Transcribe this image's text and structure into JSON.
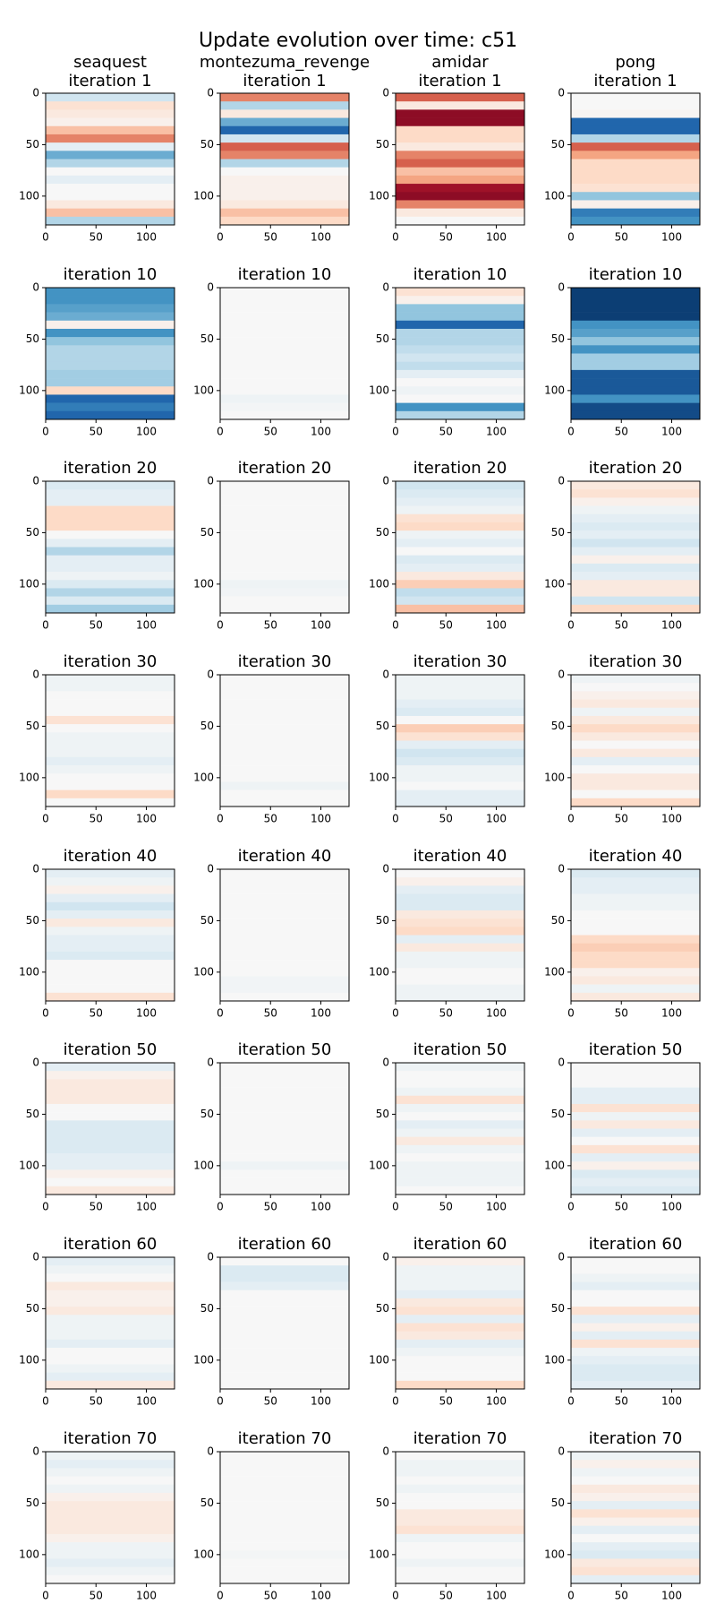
{
  "title": "Update evolution over time: c51",
  "axes": {
    "xlim": [
      0,
      128
    ],
    "ylim": [
      0,
      128
    ],
    "y_inverted": true,
    "xticks": [
      0,
      50,
      100
    ],
    "yticks": [
      0,
      50,
      100
    ],
    "colormap": "RdBu_r",
    "vlim": [
      -1,
      1
    ]
  },
  "chart_data": [
    {
      "type": "heatmap",
      "game": "seaquest",
      "title": "iteration 1",
      "values": [
        -0.2,
        0.15,
        0.1,
        0.05,
        0.3,
        0.5,
        -0.1,
        -0.5,
        -0.3,
        0,
        -0.1,
        0,
        0,
        0.1,
        0.3,
        -0.3
      ]
    },
    {
      "type": "heatmap",
      "game": "montezuma_revenge",
      "title": "iteration 1",
      "values": [
        0.5,
        -0.3,
        0.1,
        -0.5,
        -0.8,
        -0.2,
        0.6,
        0.5,
        -0.3,
        0,
        0.05,
        0.05,
        0.05,
        0.1,
        0.3,
        0.2
      ]
    },
    {
      "type": "heatmap",
      "game": "amidar",
      "title": "iteration 1",
      "values": [
        0.6,
        0.1,
        0.9,
        0.9,
        0.2,
        0.2,
        0.1,
        0.5,
        0.6,
        0.3,
        0.4,
        0.85,
        0.9,
        0.5,
        0.1,
        0
      ]
    },
    {
      "type": "heatmap",
      "game": "pong",
      "title": "iteration 1",
      "values": [
        0,
        0,
        0.02,
        -0.8,
        -0.8,
        -0.3,
        0.6,
        0.4,
        0.2,
        0.2,
        0.2,
        0.15,
        -0.4,
        0.05,
        -0.7,
        -0.6
      ]
    },
    {
      "type": "heatmap",
      "title": "iteration 10",
      "values": [
        -0.6,
        -0.6,
        -0.55,
        -0.5,
        0.05,
        -0.6,
        -0.4,
        -0.3,
        -0.3,
        -0.3,
        -0.35,
        -0.35,
        0.2,
        -0.8,
        -0.7,
        -0.8
      ]
    },
    {
      "type": "heatmap",
      "title": "iteration 10",
      "values": [
        0,
        0,
        0,
        0,
        0,
        0,
        0,
        0,
        0,
        0,
        0,
        0,
        0,
        -0.05,
        -0.02,
        0
      ]
    },
    {
      "type": "heatmap",
      "title": "iteration 10",
      "values": [
        0.15,
        0.05,
        -0.4,
        -0.4,
        -0.8,
        -0.3,
        -0.3,
        -0.25,
        -0.2,
        -0.25,
        -0.1,
        0,
        -0.05,
        0,
        -0.6,
        -0.3
      ]
    },
    {
      "type": "heatmap",
      "title": "iteration 10",
      "values": [
        -0.95,
        -0.95,
        -0.95,
        -0.95,
        -0.6,
        -0.55,
        -0.4,
        -0.6,
        -0.35,
        -0.35,
        -0.85,
        -0.85,
        -0.85,
        -0.6,
        -0.9,
        -0.9
      ]
    },
    {
      "type": "heatmap",
      "title": "iteration 20",
      "values": [
        -0.15,
        -0.1,
        -0.1,
        0.2,
        0.2,
        0.2,
        0,
        -0.1,
        -0.3,
        -0.1,
        -0.1,
        -0.05,
        -0.15,
        -0.3,
        -0.15,
        -0.35
      ]
    },
    {
      "type": "heatmap",
      "title": "iteration 20",
      "values": [
        0,
        0,
        0,
        0,
        0,
        0,
        0,
        0,
        0,
        0,
        0,
        0,
        -0.05,
        -0.03,
        0,
        0
      ]
    },
    {
      "type": "heatmap",
      "title": "iteration 20",
      "values": [
        -0.2,
        -0.15,
        -0.1,
        -0.05,
        0.15,
        0.2,
        -0.05,
        -0.1,
        0,
        -0.15,
        -0.1,
        0.1,
        0.25,
        -0.25,
        -0.2,
        0.3
      ]
    },
    {
      "type": "heatmap",
      "title": "iteration 20",
      "values": [
        0.1,
        0.15,
        0.05,
        -0.05,
        -0.1,
        -0.15,
        -0.1,
        -0.2,
        -0.1,
        0.05,
        -0.15,
        -0.1,
        0.1,
        0.1,
        -0.2,
        0.2
      ]
    },
    {
      "type": "heatmap",
      "title": "iteration 30",
      "values": [
        -0.05,
        -0.05,
        0,
        0,
        0,
        0.15,
        0,
        -0.05,
        -0.05,
        -0.05,
        -0.1,
        -0.05,
        0,
        0,
        0.2,
        0
      ]
    },
    {
      "type": "heatmap",
      "title": "iteration 30",
      "values": [
        0,
        0,
        0,
        0,
        0,
        0,
        0,
        0,
        0,
        0,
        0,
        0,
        0,
        -0.05,
        0,
        0
      ]
    },
    {
      "type": "heatmap",
      "title": "iteration 30",
      "values": [
        -0.05,
        -0.05,
        -0.05,
        -0.1,
        -0.15,
        0,
        0.25,
        0.15,
        -0.1,
        -0.2,
        -0.15,
        -0.05,
        -0.05,
        0,
        -0.1,
        -0.1
      ]
    },
    {
      "type": "heatmap",
      "title": "iteration 30",
      "values": [
        -0.05,
        0,
        0.05,
        0.1,
        -0.05,
        0.1,
        0.2,
        0.1,
        0,
        0.1,
        -0.1,
        0,
        0.1,
        0.1,
        0,
        0.2
      ]
    },
    {
      "type": "heatmap",
      "title": "iteration 40",
      "values": [
        -0.1,
        -0.05,
        0.05,
        -0.1,
        -0.2,
        -0.1,
        0.1,
        -0.05,
        -0.1,
        -0.1,
        -0.15,
        0,
        0,
        0,
        0,
        0.15
      ]
    },
    {
      "type": "heatmap",
      "title": "iteration 40",
      "values": [
        0,
        0,
        0,
        0,
        0,
        0,
        0,
        0,
        0,
        0,
        0,
        0,
        0,
        -0.03,
        -0.03,
        0
      ]
    },
    {
      "type": "heatmap",
      "title": "iteration 40",
      "values": [
        0,
        0.05,
        -0.1,
        -0.15,
        -0.15,
        0.1,
        0.15,
        0.2,
        -0.1,
        0.1,
        -0.05,
        -0.05,
        0,
        0,
        -0.05,
        -0.05
      ]
    },
    {
      "type": "heatmap",
      "title": "iteration 40",
      "values": [
        -0.15,
        -0.1,
        -0.1,
        -0.05,
        -0.05,
        0,
        0,
        0,
        0.2,
        0.25,
        0.2,
        0.2,
        0.05,
        0.1,
        -0.05,
        0.1
      ]
    },
    {
      "type": "heatmap",
      "title": "iteration 50",
      "values": [
        -0.1,
        0.05,
        0.1,
        0.1,
        0.1,
        0,
        0,
        -0.15,
        -0.15,
        -0.15,
        -0.15,
        -0.1,
        -0.1,
        0.05,
        0,
        0.1
      ]
    },
    {
      "type": "heatmap",
      "title": "iteration 50",
      "values": [
        0,
        0,
        0,
        0,
        0,
        0,
        0,
        0,
        0,
        0,
        0,
        0,
        -0.05,
        0,
        0,
        0
      ]
    },
    {
      "type": "heatmap",
      "title": "iteration 50",
      "values": [
        -0.05,
        0,
        0,
        -0.05,
        0.15,
        -0.05,
        0,
        -0.1,
        -0.05,
        0.1,
        -0.05,
        0,
        -0.05,
        -0.05,
        -0.05,
        0
      ]
    },
    {
      "type": "heatmap",
      "title": "iteration 50",
      "values": [
        0,
        0,
        0,
        -0.1,
        -0.1,
        0.15,
        -0.05,
        0.1,
        -0.1,
        0,
        0.15,
        -0.1,
        0.05,
        -0.15,
        -0.1,
        -0.15
      ]
    },
    {
      "type": "heatmap",
      "title": "iteration 60",
      "values": [
        -0.1,
        -0.05,
        0,
        0.1,
        0.05,
        0.05,
        0.1,
        -0.05,
        -0.05,
        -0.05,
        -0.1,
        0,
        0,
        -0.05,
        -0.1,
        0.1
      ]
    },
    {
      "type": "heatmap",
      "title": "iteration 60",
      "values": [
        0,
        -0.15,
        -0.15,
        -0.1,
        0,
        0,
        0,
        0,
        0,
        0,
        0,
        0,
        0,
        0,
        0,
        0
      ]
    },
    {
      "type": "heatmap",
      "title": "iteration 60",
      "values": [
        0.05,
        -0.05,
        -0.05,
        -0.05,
        -0.1,
        0.1,
        0.15,
        -0.1,
        0.15,
        0.1,
        -0.1,
        -0.05,
        0,
        0,
        0,
        0.2
      ]
    },
    {
      "type": "heatmap",
      "title": "iteration 60",
      "values": [
        0,
        0,
        -0.05,
        -0.1,
        0,
        0,
        0.15,
        -0.1,
        0.05,
        -0.1,
        0.15,
        -0.05,
        -0.1,
        -0.15,
        -0.15,
        -0.1
      ]
    },
    {
      "type": "heatmap",
      "title": "iteration 70",
      "values": [
        -0.05,
        -0.1,
        -0.05,
        0,
        -0.05,
        0.05,
        0.1,
        0.1,
        0.1,
        0.1,
        0.05,
        -0.05,
        -0.05,
        -0.1,
        -0.05,
        0
      ]
    },
    {
      "type": "heatmap",
      "title": "iteration 70",
      "values": [
        0,
        0,
        0,
        0,
        0,
        0,
        0,
        0,
        0,
        0,
        0,
        0,
        -0.02,
        0,
        0,
        0
      ]
    },
    {
      "type": "heatmap",
      "title": "iteration 70",
      "values": [
        0,
        -0.05,
        -0.05,
        0,
        -0.05,
        0,
        0,
        0.1,
        0.1,
        0.15,
        -0.05,
        0,
        0,
        -0.05,
        0,
        0
      ]
    },
    {
      "type": "heatmap",
      "title": "iteration 70",
      "values": [
        -0.05,
        0.05,
        -0.05,
        0,
        0.1,
        0.05,
        -0.1,
        0.15,
        0.05,
        -0.1,
        0,
        -0.1,
        -0.15,
        0.1,
        0.15,
        -0.1
      ]
    }
  ]
}
